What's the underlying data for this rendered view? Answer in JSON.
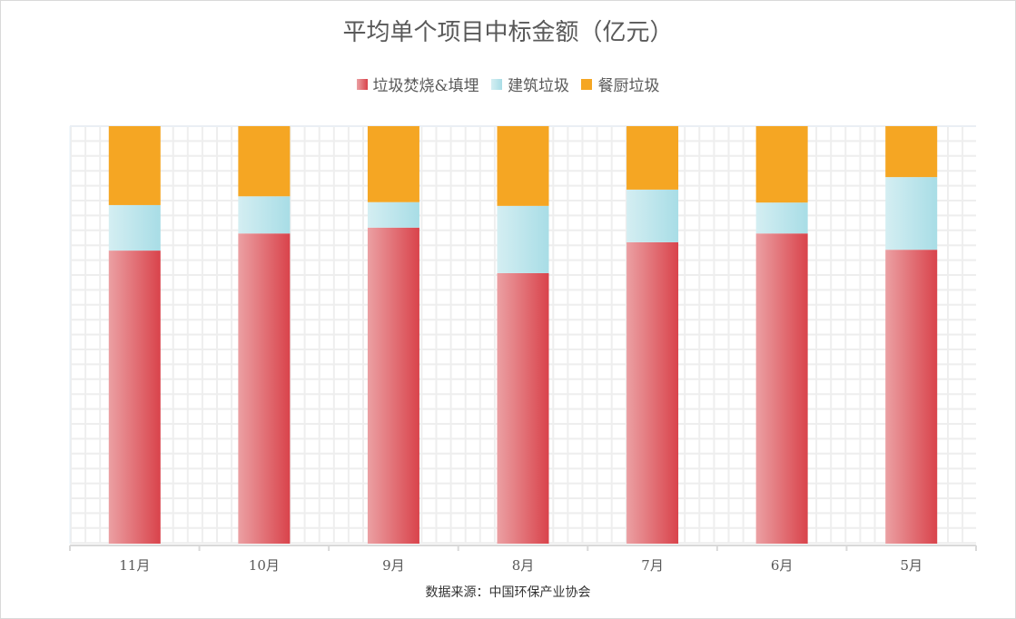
{
  "chart_data": {
    "type": "bar",
    "stacked": "percent",
    "title": "平均单个项目中标金额（亿元）",
    "categories": [
      "11月",
      "10月",
      "9月",
      "8月",
      "7月",
      "6月",
      "5月"
    ],
    "series": [
      {
        "name": "垃圾焚烧&填埋",
        "values": [
          70.2,
          74.3,
          75.7,
          64.8,
          72.2,
          74.3,
          70.4
        ],
        "color": "#d9434b",
        "gradient_from": "#eba0a3"
      },
      {
        "name": "建筑垃圾",
        "values": [
          10.9,
          8.9,
          6.1,
          16.1,
          12.6,
          7.4,
          17.4
        ],
        "color": "#a8dde6",
        "gradient_from": "#d4eef2"
      },
      {
        "name": "餐厨垃圾",
        "values": [
          18.9,
          16.8,
          18.2,
          19.1,
          15.2,
          18.3,
          12.2
        ],
        "color": "#f5a623"
      }
    ],
    "ylim": [
      0,
      100
    ],
    "grid": true,
    "legend_position": "top",
    "source": "数据来源：中国环保产业协会"
  }
}
